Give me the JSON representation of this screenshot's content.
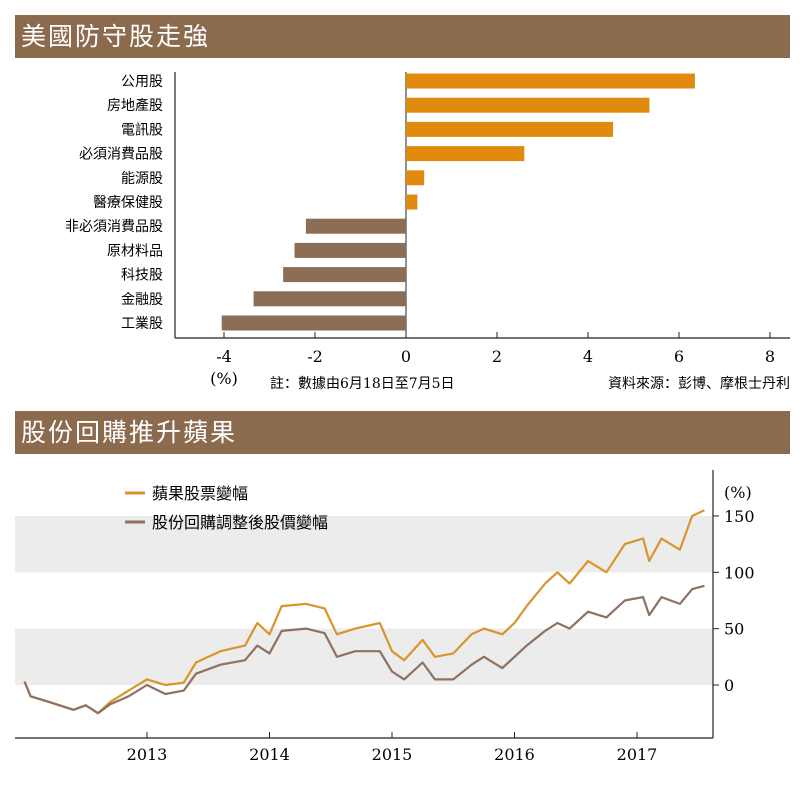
{
  "chart_data": [
    {
      "type": "bar",
      "title": "美國防守股走強",
      "orientation": "horizontal",
      "categories": [
        "公用股",
        "房地產股",
        "電訊股",
        "必須消費品股",
        "能源股",
        "醫療保健股",
        "非必須消費品股",
        "原材料品",
        "科技股",
        "金融股",
        "工業股"
      ],
      "values": [
        6.35,
        5.35,
        4.55,
        2.6,
        0.4,
        0.25,
        -2.2,
        -2.45,
        -2.7,
        -3.35,
        -4.05
      ],
      "xlim": [
        -5,
        8.5
      ],
      "xticks": [
        -4,
        -2,
        0,
        2,
        4,
        6,
        8
      ],
      "xlabel": "(%)",
      "note": "註：數據由6月18日至7月5日",
      "source": "資料來源：彭博、摩根士丹利",
      "colors": {
        "positive": "#e08a0e",
        "negative": "#8c6d55"
      }
    },
    {
      "type": "line",
      "title": "股份回購推升蘋果",
      "ylabel": "(%)",
      "ylim": [
        -45,
        190
      ],
      "yticks": [
        0,
        50,
        100,
        150
      ],
      "xlim": [
        2011.93,
        2017.65
      ],
      "xticks": [
        2013,
        2014,
        2015,
        2016,
        2017
      ],
      "legend": "top-left",
      "x": [
        2012.0,
        2012.05,
        2012.2,
        2012.4,
        2012.5,
        2012.6,
        2012.7,
        2012.85,
        2013.0,
        2013.15,
        2013.3,
        2013.4,
        2013.6,
        2013.8,
        2013.9,
        2014.0,
        2014.1,
        2014.3,
        2014.45,
        2014.55,
        2014.7,
        2014.9,
        2015.0,
        2015.1,
        2015.25,
        2015.35,
        2015.5,
        2015.65,
        2015.75,
        2015.9,
        2016.0,
        2016.1,
        2016.25,
        2016.35,
        2016.45,
        2016.6,
        2016.75,
        2016.9,
        2017.05,
        2017.1,
        2017.2,
        2017.35,
        2017.45,
        2017.55
      ],
      "series": [
        {
          "name": "蘋果股票變幅",
          "color": "#d9952b",
          "values": [
            3,
            -10,
            -15,
            -22,
            -18,
            -25,
            -15,
            -5,
            5,
            0,
            2,
            20,
            30,
            35,
            55,
            45,
            70,
            72,
            68,
            45,
            50,
            55,
            30,
            22,
            40,
            25,
            28,
            45,
            50,
            45,
            55,
            70,
            90,
            100,
            90,
            110,
            100,
            125,
            130,
            110,
            130,
            120,
            150,
            155
          ]
        },
        {
          "name": "股份回購調整後股價變幅",
          "color": "#8e7160",
          "values": [
            3,
            -10,
            -15,
            -22,
            -18,
            -25,
            -17,
            -10,
            0,
            -8,
            -5,
            10,
            18,
            22,
            35,
            28,
            48,
            50,
            46,
            25,
            30,
            30,
            12,
            5,
            20,
            5,
            5,
            18,
            25,
            15,
            25,
            35,
            48,
            55,
            50,
            65,
            60,
            75,
            78,
            62,
            78,
            72,
            85,
            88
          ]
        }
      ]
    }
  ]
}
